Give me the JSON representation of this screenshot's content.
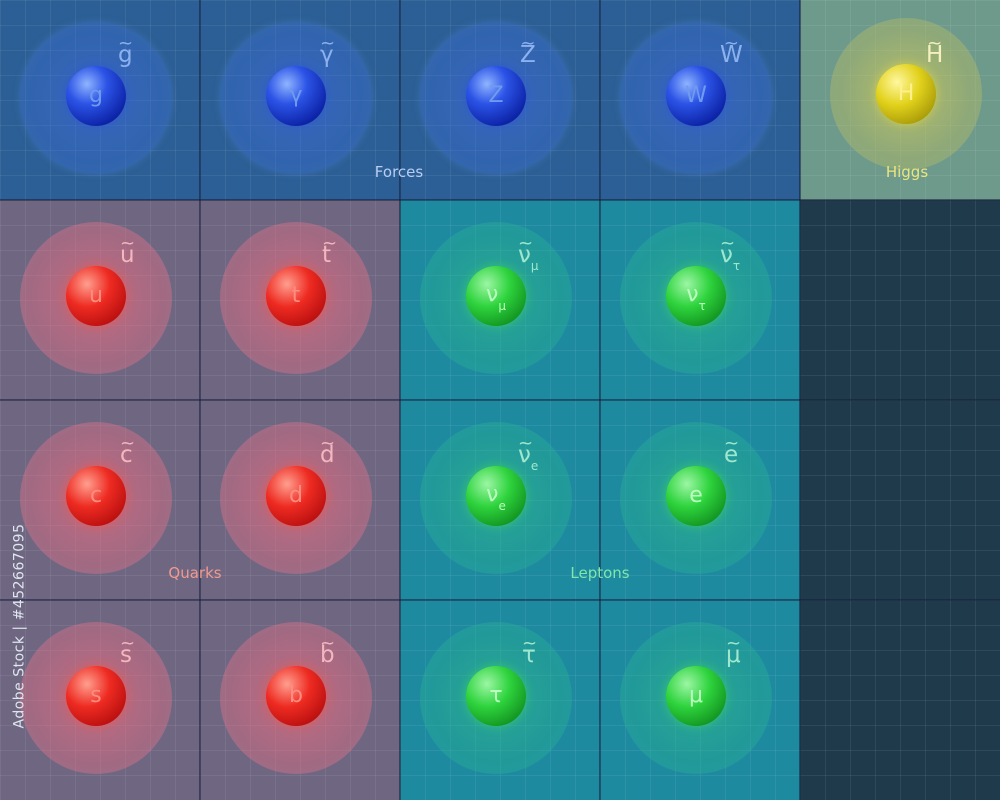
{
  "regions": {
    "forces": {
      "label": "Forces",
      "color": "#2b5f95"
    },
    "higgs": {
      "label": "Higgs",
      "color": "#6e9a8c"
    },
    "quarks": {
      "label": "Quarks",
      "color": "#6f6682"
    },
    "leptons": {
      "label": "Leptons",
      "color": "#1d8aa0"
    },
    "empty": {
      "color": "#1f3b4b"
    }
  },
  "particles": {
    "g": {
      "symbol": "g",
      "sub": "",
      "super_symbol": "g",
      "super_sub": ""
    },
    "gamma": {
      "symbol": "γ",
      "sub": "",
      "super_symbol": "γ",
      "super_sub": ""
    },
    "Z": {
      "symbol": "Z",
      "sub": "",
      "super_symbol": "Z",
      "super_sub": ""
    },
    "W": {
      "symbol": "W",
      "sub": "",
      "super_symbol": "W",
      "super_sub": ""
    },
    "H": {
      "symbol": "H",
      "sub": "",
      "super_symbol": "H",
      "super_sub": ""
    },
    "u": {
      "symbol": "u",
      "sub": "",
      "super_symbol": "u",
      "super_sub": ""
    },
    "t": {
      "symbol": "t",
      "sub": "",
      "super_symbol": "t",
      "super_sub": ""
    },
    "c": {
      "symbol": "c",
      "sub": "",
      "super_symbol": "c",
      "super_sub": ""
    },
    "d": {
      "symbol": "d",
      "sub": "",
      "super_symbol": "d",
      "super_sub": ""
    },
    "s": {
      "symbol": "s",
      "sub": "",
      "super_symbol": "s",
      "super_sub": ""
    },
    "b": {
      "symbol": "b",
      "sub": "",
      "super_symbol": "b",
      "super_sub": ""
    },
    "nu_mu": {
      "symbol": "ν",
      "sub": "μ",
      "super_symbol": "ν",
      "super_sub": "μ"
    },
    "nu_tau": {
      "symbol": "ν",
      "sub": "τ",
      "super_symbol": "ν",
      "super_sub": "τ"
    },
    "nu_e": {
      "symbol": "ν",
      "sub": "e",
      "super_symbol": "ν",
      "super_sub": "e"
    },
    "e": {
      "symbol": "e",
      "sub": "",
      "super_symbol": "e",
      "super_sub": ""
    },
    "tau": {
      "symbol": "τ",
      "sub": "",
      "super_symbol": "τ",
      "super_sub": ""
    },
    "mu": {
      "symbol": "μ",
      "sub": "",
      "super_symbol": "μ",
      "super_sub": ""
    }
  },
  "tilde": "~",
  "watermark": "Adobe Stock | #452667095"
}
